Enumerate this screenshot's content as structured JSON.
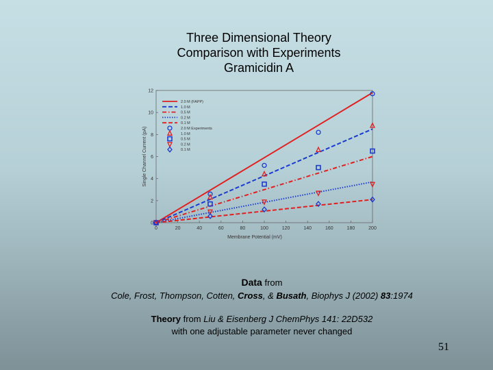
{
  "slide": {
    "title_lines": [
      "Three Dimensional Theory",
      "Comparison with Experiments",
      "Gramicidin A"
    ],
    "page_number": "51"
  },
  "credits": {
    "data_label": "Data",
    "from": "from",
    "citation_authors_1": "Cole, Frost, Thompson, Cotten,",
    "citation_cross": "Cross",
    "citation_amp": ", &",
    "citation_busath": "Busath",
    "citation_rest": ", Biophys J (2002)",
    "citation_volume": "83",
    "citation_page": ":1974",
    "theory_label": "Theory",
    "theory_from": "from",
    "theory_ref": "Liu & Eisenberg J ChemPhys 141: 22D532",
    "theory_note": "with one adjustable parameter never changed"
  },
  "chart_data": {
    "type": "line",
    "xlabel": "Membrane Potential (mV)",
    "ylabel": "Single Channel Current (pA)",
    "xlim": [
      0,
      200
    ],
    "ylim": [
      0,
      12
    ],
    "xticks": [
      0,
      20,
      40,
      60,
      80,
      100,
      120,
      140,
      160,
      180,
      200
    ],
    "yticks": [
      0,
      2,
      4,
      6,
      8,
      10,
      12
    ],
    "legend_position": "top-left",
    "theory_series": [
      {
        "name": "2.0 M (FAPP)",
        "color": "#e02020",
        "dash": "solid",
        "x": [
          0,
          200
        ],
        "y": [
          0,
          11.8
        ]
      },
      {
        "name": "1.0 M",
        "color": "#1a3ad0",
        "dash": "dashed",
        "x": [
          0,
          200
        ],
        "y": [
          0,
          8.5
        ]
      },
      {
        "name": "0.5 M",
        "color": "#e02020",
        "dash": "dashdot",
        "x": [
          0,
          200
        ],
        "y": [
          0,
          6.0
        ]
      },
      {
        "name": "0.2 M",
        "color": "#1a3ad0",
        "dash": "dotted",
        "x": [
          0,
          200
        ],
        "y": [
          0,
          3.7
        ]
      },
      {
        "name": "0.1 M",
        "color": "#e02020",
        "dash": "dashed",
        "x": [
          0,
          200
        ],
        "y": [
          0,
          2.1
        ]
      }
    ],
    "experiment_series": [
      {
        "name": "2.0 M Experiments",
        "color": "#1a3ad0",
        "marker": "circle",
        "x": [
          0,
          50,
          100,
          150,
          200
        ],
        "y": [
          0,
          2.6,
          5.2,
          8.2,
          11.7
        ]
      },
      {
        "name": "1.0 M",
        "color": "#e02020",
        "marker": "triangle-up",
        "x": [
          0,
          50,
          100,
          150,
          200
        ],
        "y": [
          0,
          2.3,
          4.4,
          6.6,
          8.8
        ]
      },
      {
        "name": "0.5 M",
        "color": "#1a3ad0",
        "marker": "square",
        "x": [
          0,
          50,
          100,
          150,
          200
        ],
        "y": [
          0,
          1.7,
          3.5,
          5.0,
          6.5
        ]
      },
      {
        "name": "0.2 M",
        "color": "#e02020",
        "marker": "triangle-down",
        "x": [
          0,
          50,
          100,
          150,
          200
        ],
        "y": [
          0,
          1.0,
          1.9,
          2.7,
          3.5
        ]
      },
      {
        "name": "0.1 M",
        "color": "#1a3ad0",
        "marker": "diamond",
        "x": [
          0,
          50,
          100,
          150,
          200
        ],
        "y": [
          0,
          0.6,
          1.2,
          1.7,
          2.1
        ]
      }
    ]
  }
}
